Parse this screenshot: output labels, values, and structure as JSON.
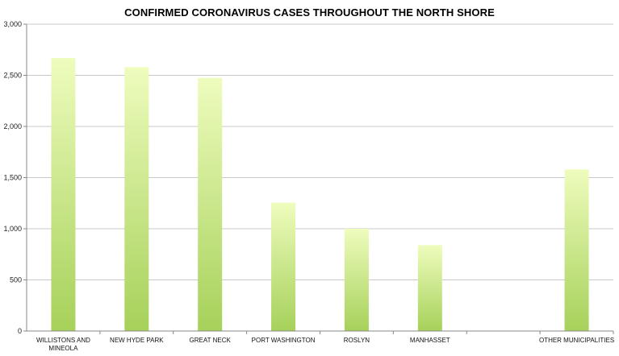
{
  "chart_data": {
    "type": "bar",
    "title": "CONFIRMED CORONAVIRUS CASES THROUGHOUT THE NORTH SHORE",
    "categories": [
      "WILLISTONS AND MINEOLA",
      "NEW HYDE PARK",
      "GREAT NECK",
      "PORT WASHINGTON",
      "ROSLYN",
      "MANHASSET",
      "",
      "OTHER MUNICIPALITIES"
    ],
    "values": [
      2670,
      2580,
      2475,
      1255,
      1000,
      840,
      null,
      1580
    ],
    "ylim": [
      0,
      3000
    ],
    "yticks": [
      0,
      500,
      1000,
      1500,
      2000,
      2500,
      3000
    ],
    "ytick_labels": [
      "0",
      "500",
      "1,000",
      "1,500",
      "2,000",
      "2,500",
      "3,000"
    ],
    "grid": true,
    "legend": "none",
    "colors": {
      "bar_top": "#eefcbd",
      "bar_bottom": "#a6d15a",
      "grid": "#c8c8c8"
    }
  }
}
